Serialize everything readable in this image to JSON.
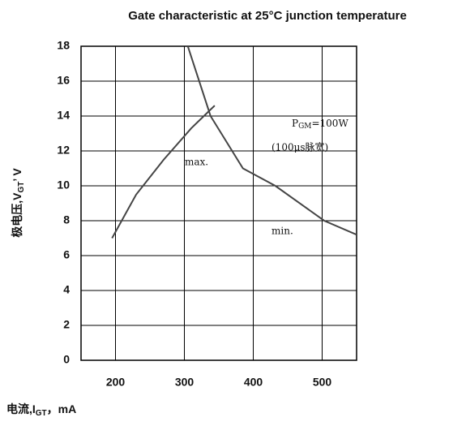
{
  "chart_data": {
    "type": "line",
    "title": "Gate characteristic at 25°C junction temperature",
    "y_label": [
      "极电压,V",
      "GT",
      "’ V"
    ],
    "x_label": [
      "电流,I",
      "GT",
      "，mA"
    ],
    "xlim": [
      150,
      550
    ],
    "xticks": [
      200,
      300,
      400,
      500
    ],
    "ylim": [
      0,
      18
    ],
    "yticks": [
      0,
      2,
      4,
      6,
      8,
      10,
      12,
      14,
      16,
      18
    ],
    "grid": true,
    "annotations": {
      "max": "max.",
      "pgm": [
        "P",
        "GM",
        "=100W"
      ],
      "pulse": "(100μs脉宽)",
      "min": "min."
    },
    "series": [
      {
        "color": "#444444",
        "x": [
          195,
          230,
          270,
          310,
          344
        ],
        "values": [
          7,
          9.5,
          11.5,
          13.3,
          14.6
        ]
      },
      {
        "color": "#444444",
        "x": [
          305,
          338,
          385,
          432,
          503,
          550
        ],
        "values": [
          18,
          14,
          11,
          10,
          8,
          7.2
        ]
      }
    ]
  }
}
